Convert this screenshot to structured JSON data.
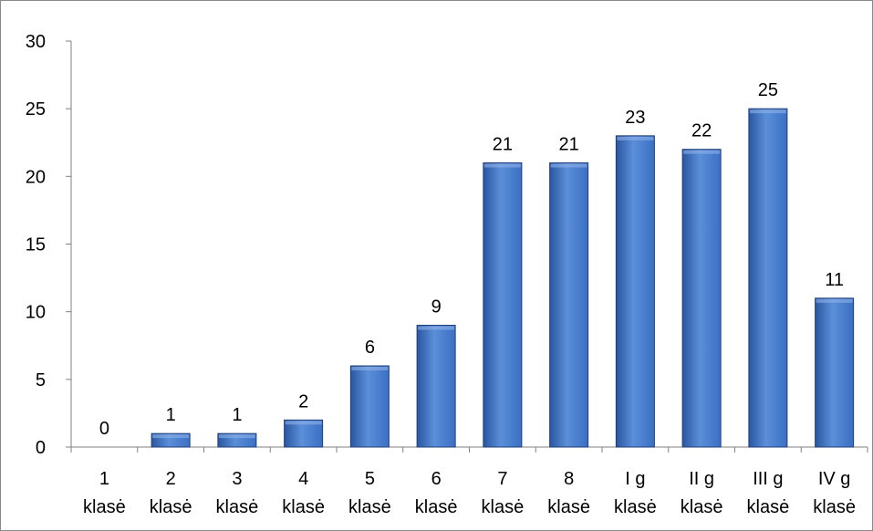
{
  "chart_data": {
    "type": "bar",
    "title": "",
    "xlabel": "",
    "ylabel": "",
    "ylim": [
      0,
      30
    ],
    "yticks": [
      0,
      5,
      10,
      15,
      20,
      25,
      30
    ],
    "grid": false,
    "legend": "none",
    "categories": [
      [
        "1",
        "klasė"
      ],
      [
        "2",
        "klasė"
      ],
      [
        "3",
        "klasė"
      ],
      [
        "4",
        "klasė"
      ],
      [
        "5",
        "klasė"
      ],
      [
        "6",
        "klasė"
      ],
      [
        "7",
        "klasė"
      ],
      [
        "8",
        "klasė"
      ],
      [
        "I g",
        "klasė"
      ],
      [
        "II g",
        "klasė"
      ],
      [
        "III g",
        "klasė"
      ],
      [
        "IV g",
        "klasė"
      ]
    ],
    "values": [
      0,
      1,
      1,
      2,
      6,
      9,
      21,
      21,
      23,
      22,
      25,
      11
    ],
    "data_labels": true,
    "colors": {
      "bar_top": "#5b8fd8",
      "bar_mid": "#3a6fc4",
      "bar_bottom": "#2a56a0",
      "bar_edge": "#1f3f7a",
      "axis": "#808080",
      "text": "#000000"
    }
  }
}
